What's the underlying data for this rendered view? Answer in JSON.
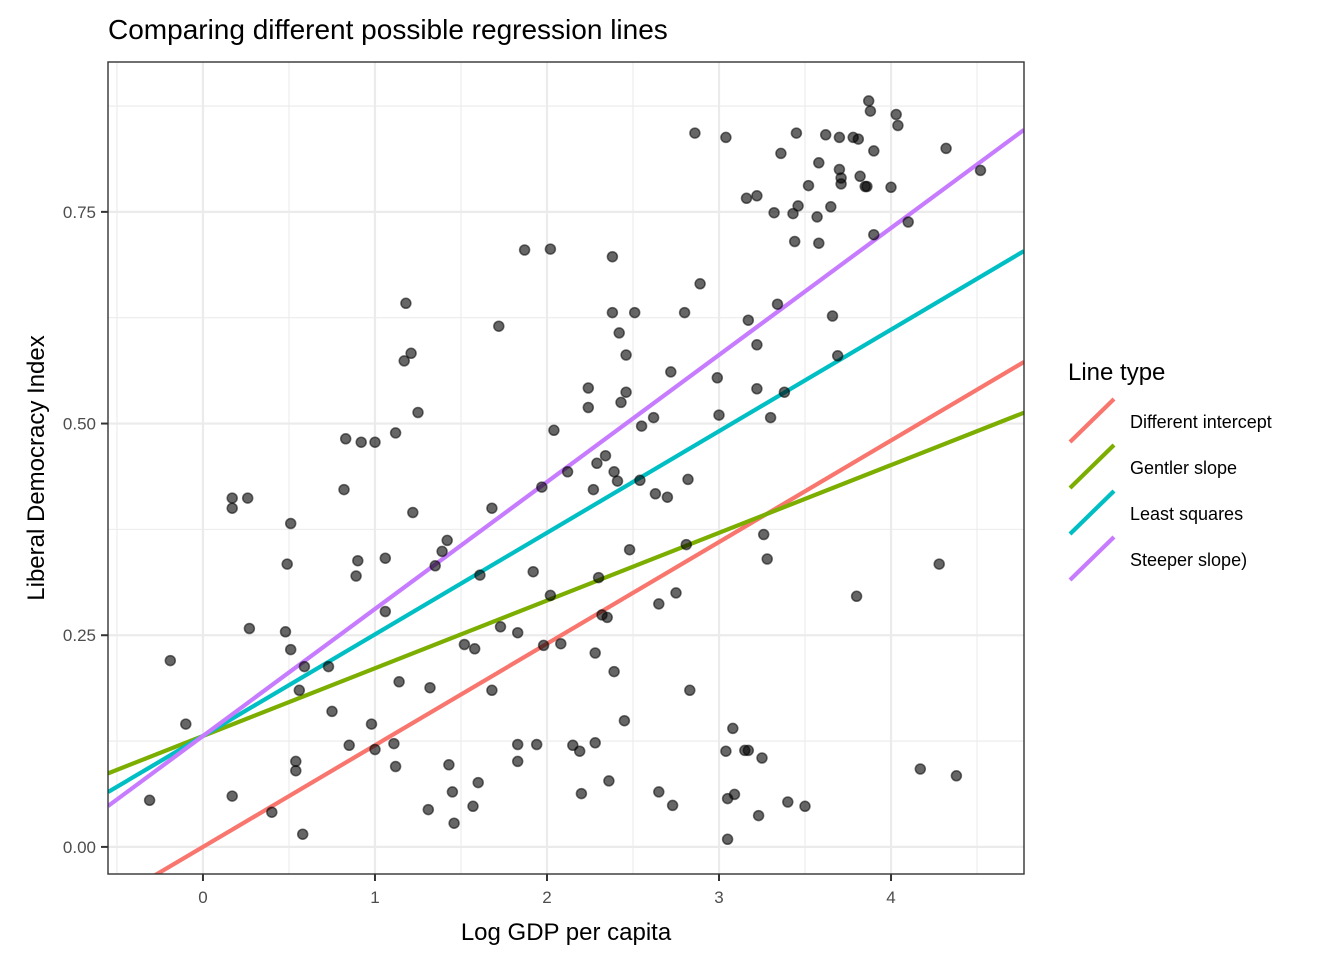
{
  "chart_data": {
    "type": "scatter",
    "title": "Comparing different possible regression lines",
    "xlabel": "Log GDP per capita",
    "ylabel": "Liberal Democracy Index",
    "xlim": [
      -0.552,
      4.773
    ],
    "ylim": [
      -0.032,
      0.927
    ],
    "x_ticks": [
      0,
      1,
      2,
      3,
      4
    ],
    "x_tick_labels": [
      "0",
      "1",
      "2",
      "3",
      "4"
    ],
    "y_ticks": [
      0,
      0.25,
      0.5,
      0.75
    ],
    "y_tick_labels": [
      "0.00",
      "0.25",
      "0.50",
      "0.75"
    ],
    "grid": true,
    "legend": {
      "title": "Line type",
      "placement": "right",
      "entries": [
        {
          "label": "Different intercept",
          "color": "#F8766D"
        },
        {
          "label": "Gentler slope",
          "color": "#7CAE00"
        },
        {
          "label": "Least squares",
          "color": "#00BFC4"
        },
        {
          "label": "Steeper slope)",
          "color": "#C77CFF"
        }
      ]
    },
    "lines": [
      {
        "name": "Different intercept",
        "intercept": 0.0,
        "slope": 0.12,
        "color": "#F8766D"
      },
      {
        "name": "Gentler slope",
        "intercept": 0.131,
        "slope": 0.08,
        "color": "#7CAE00"
      },
      {
        "name": "Least squares",
        "intercept": 0.131,
        "slope": 0.12,
        "color": "#00BFC4"
      },
      {
        "name": "Steeper slope)",
        "intercept": 0.131,
        "slope": 0.15,
        "color": "#C77CFF"
      }
    ],
    "points": [
      [
        -0.31,
        0.055
      ],
      [
        -0.19,
        0.22
      ],
      [
        -0.1,
        0.145
      ],
      [
        0.17,
        0.412
      ],
      [
        0.17,
        0.4
      ],
      [
        0.26,
        0.412
      ],
      [
        0.17,
        0.06
      ],
      [
        0.27,
        0.258
      ],
      [
        0.4,
        0.041
      ],
      [
        0.48,
        0.254
      ],
      [
        0.49,
        0.334
      ],
      [
        0.51,
        0.233
      ],
      [
        0.51,
        0.382
      ],
      [
        0.54,
        0.101
      ],
      [
        0.54,
        0.09
      ],
      [
        0.56,
        0.185
      ],
      [
        0.58,
        0.015
      ],
      [
        0.59,
        0.213
      ],
      [
        0.73,
        0.213
      ],
      [
        0.75,
        0.16
      ],
      [
        0.82,
        0.422
      ],
      [
        0.83,
        0.482
      ],
      [
        0.85,
        0.12
      ],
      [
        0.89,
        0.32
      ],
      [
        0.9,
        0.338
      ],
      [
        0.92,
        0.478
      ],
      [
        0.98,
        0.145
      ],
      [
        1.0,
        0.478
      ],
      [
        1.0,
        0.115
      ],
      [
        1.06,
        0.341
      ],
      [
        1.06,
        0.278
      ],
      [
        1.11,
        0.122
      ],
      [
        1.12,
        0.095
      ],
      [
        1.12,
        0.489
      ],
      [
        1.14,
        0.195
      ],
      [
        1.17,
        0.574
      ],
      [
        1.18,
        0.642
      ],
      [
        1.21,
        0.583
      ],
      [
        1.22,
        0.395
      ],
      [
        1.25,
        0.513
      ],
      [
        1.31,
        0.044
      ],
      [
        1.32,
        0.188
      ],
      [
        1.35,
        0.332
      ],
      [
        1.39,
        0.349
      ],
      [
        1.42,
        0.362
      ],
      [
        1.43,
        0.097
      ],
      [
        1.45,
        0.065
      ],
      [
        1.46,
        0.028
      ],
      [
        1.52,
        0.239
      ],
      [
        1.57,
        0.048
      ],
      [
        1.58,
        0.234
      ],
      [
        1.6,
        0.076
      ],
      [
        1.61,
        0.321
      ],
      [
        1.68,
        0.4
      ],
      [
        1.68,
        0.185
      ],
      [
        1.72,
        0.615
      ],
      [
        1.73,
        0.26
      ],
      [
        1.83,
        0.253
      ],
      [
        1.83,
        0.121
      ],
      [
        1.83,
        0.101
      ],
      [
        1.87,
        0.705
      ],
      [
        1.92,
        0.325
      ],
      [
        1.94,
        0.121
      ],
      [
        1.97,
        0.425
      ],
      [
        1.98,
        0.238
      ],
      [
        2.02,
        0.706
      ],
      [
        2.02,
        0.297
      ],
      [
        2.04,
        0.492
      ],
      [
        2.08,
        0.24
      ],
      [
        2.12,
        0.443
      ],
      [
        2.15,
        0.12
      ],
      [
        2.19,
        0.113
      ],
      [
        2.2,
        0.063
      ],
      [
        2.24,
        0.542
      ],
      [
        2.24,
        0.519
      ],
      [
        2.27,
        0.422
      ],
      [
        2.28,
        0.123
      ],
      [
        2.28,
        0.229
      ],
      [
        2.29,
        0.453
      ],
      [
        2.3,
        0.318
      ],
      [
        2.32,
        0.274
      ],
      [
        2.34,
        0.462
      ],
      [
        2.35,
        0.271
      ],
      [
        2.36,
        0.078
      ],
      [
        2.38,
        0.631
      ],
      [
        2.38,
        0.697
      ],
      [
        2.39,
        0.443
      ],
      [
        2.39,
        0.207
      ],
      [
        2.41,
        0.432
      ],
      [
        2.42,
        0.607
      ],
      [
        2.43,
        0.525
      ],
      [
        2.45,
        0.149
      ],
      [
        2.46,
        0.537
      ],
      [
        2.46,
        0.581
      ],
      [
        2.48,
        0.351
      ],
      [
        2.51,
        0.631
      ],
      [
        2.54,
        0.433
      ],
      [
        2.55,
        0.497
      ],
      [
        2.62,
        0.507
      ],
      [
        2.63,
        0.417
      ],
      [
        2.65,
        0.287
      ],
      [
        2.65,
        0.065
      ],
      [
        2.7,
        0.413
      ],
      [
        2.72,
        0.561
      ],
      [
        2.73,
        0.049
      ],
      [
        2.75,
        0.3
      ],
      [
        2.8,
        0.631
      ],
      [
        2.81,
        0.357
      ],
      [
        2.82,
        0.434
      ],
      [
        2.83,
        0.185
      ],
      [
        2.86,
        0.843
      ],
      [
        2.89,
        0.665
      ],
      [
        2.99,
        0.554
      ],
      [
        3.0,
        0.51
      ],
      [
        3.04,
        0.113
      ],
      [
        3.04,
        0.838
      ],
      [
        3.05,
        0.009
      ],
      [
        3.05,
        0.057
      ],
      [
        3.08,
        0.14
      ],
      [
        3.09,
        0.062
      ],
      [
        3.15,
        0.114
      ],
      [
        3.16,
        0.766
      ],
      [
        3.17,
        0.622
      ],
      [
        3.17,
        0.114
      ],
      [
        3.22,
        0.769
      ],
      [
        3.22,
        0.593
      ],
      [
        3.22,
        0.541
      ],
      [
        3.23,
        0.037
      ],
      [
        3.25,
        0.105
      ],
      [
        3.26,
        0.369
      ],
      [
        3.28,
        0.34
      ],
      [
        3.3,
        0.507
      ],
      [
        3.32,
        0.749
      ],
      [
        3.34,
        0.641
      ],
      [
        3.36,
        0.819
      ],
      [
        3.38,
        0.537
      ],
      [
        3.4,
        0.053
      ],
      [
        3.43,
        0.748
      ],
      [
        3.44,
        0.715
      ],
      [
        3.45,
        0.843
      ],
      [
        3.46,
        0.757
      ],
      [
        3.5,
        0.048
      ],
      [
        3.52,
        0.781
      ],
      [
        3.57,
        0.744
      ],
      [
        3.58,
        0.808
      ],
      [
        3.58,
        0.713
      ],
      [
        3.62,
        0.841
      ],
      [
        3.65,
        0.756
      ],
      [
        3.66,
        0.627
      ],
      [
        3.69,
        0.58
      ],
      [
        3.7,
        0.838
      ],
      [
        3.7,
        0.8
      ],
      [
        3.71,
        0.79
      ],
      [
        3.71,
        0.783
      ],
      [
        3.78,
        0.838
      ],
      [
        3.8,
        0.296
      ],
      [
        3.81,
        0.836
      ],
      [
        3.82,
        0.792
      ],
      [
        3.85,
        0.78
      ],
      [
        3.86,
        0.78
      ],
      [
        3.87,
        0.881
      ],
      [
        3.88,
        0.869
      ],
      [
        3.9,
        0.822
      ],
      [
        3.9,
        0.723
      ],
      [
        4.0,
        0.779
      ],
      [
        4.03,
        0.865
      ],
      [
        4.04,
        0.852
      ],
      [
        4.1,
        0.738
      ],
      [
        4.17,
        0.092
      ],
      [
        4.28,
        0.334
      ],
      [
        4.32,
        0.825
      ],
      [
        4.38,
        0.084
      ],
      [
        4.52,
        0.799
      ]
    ]
  }
}
